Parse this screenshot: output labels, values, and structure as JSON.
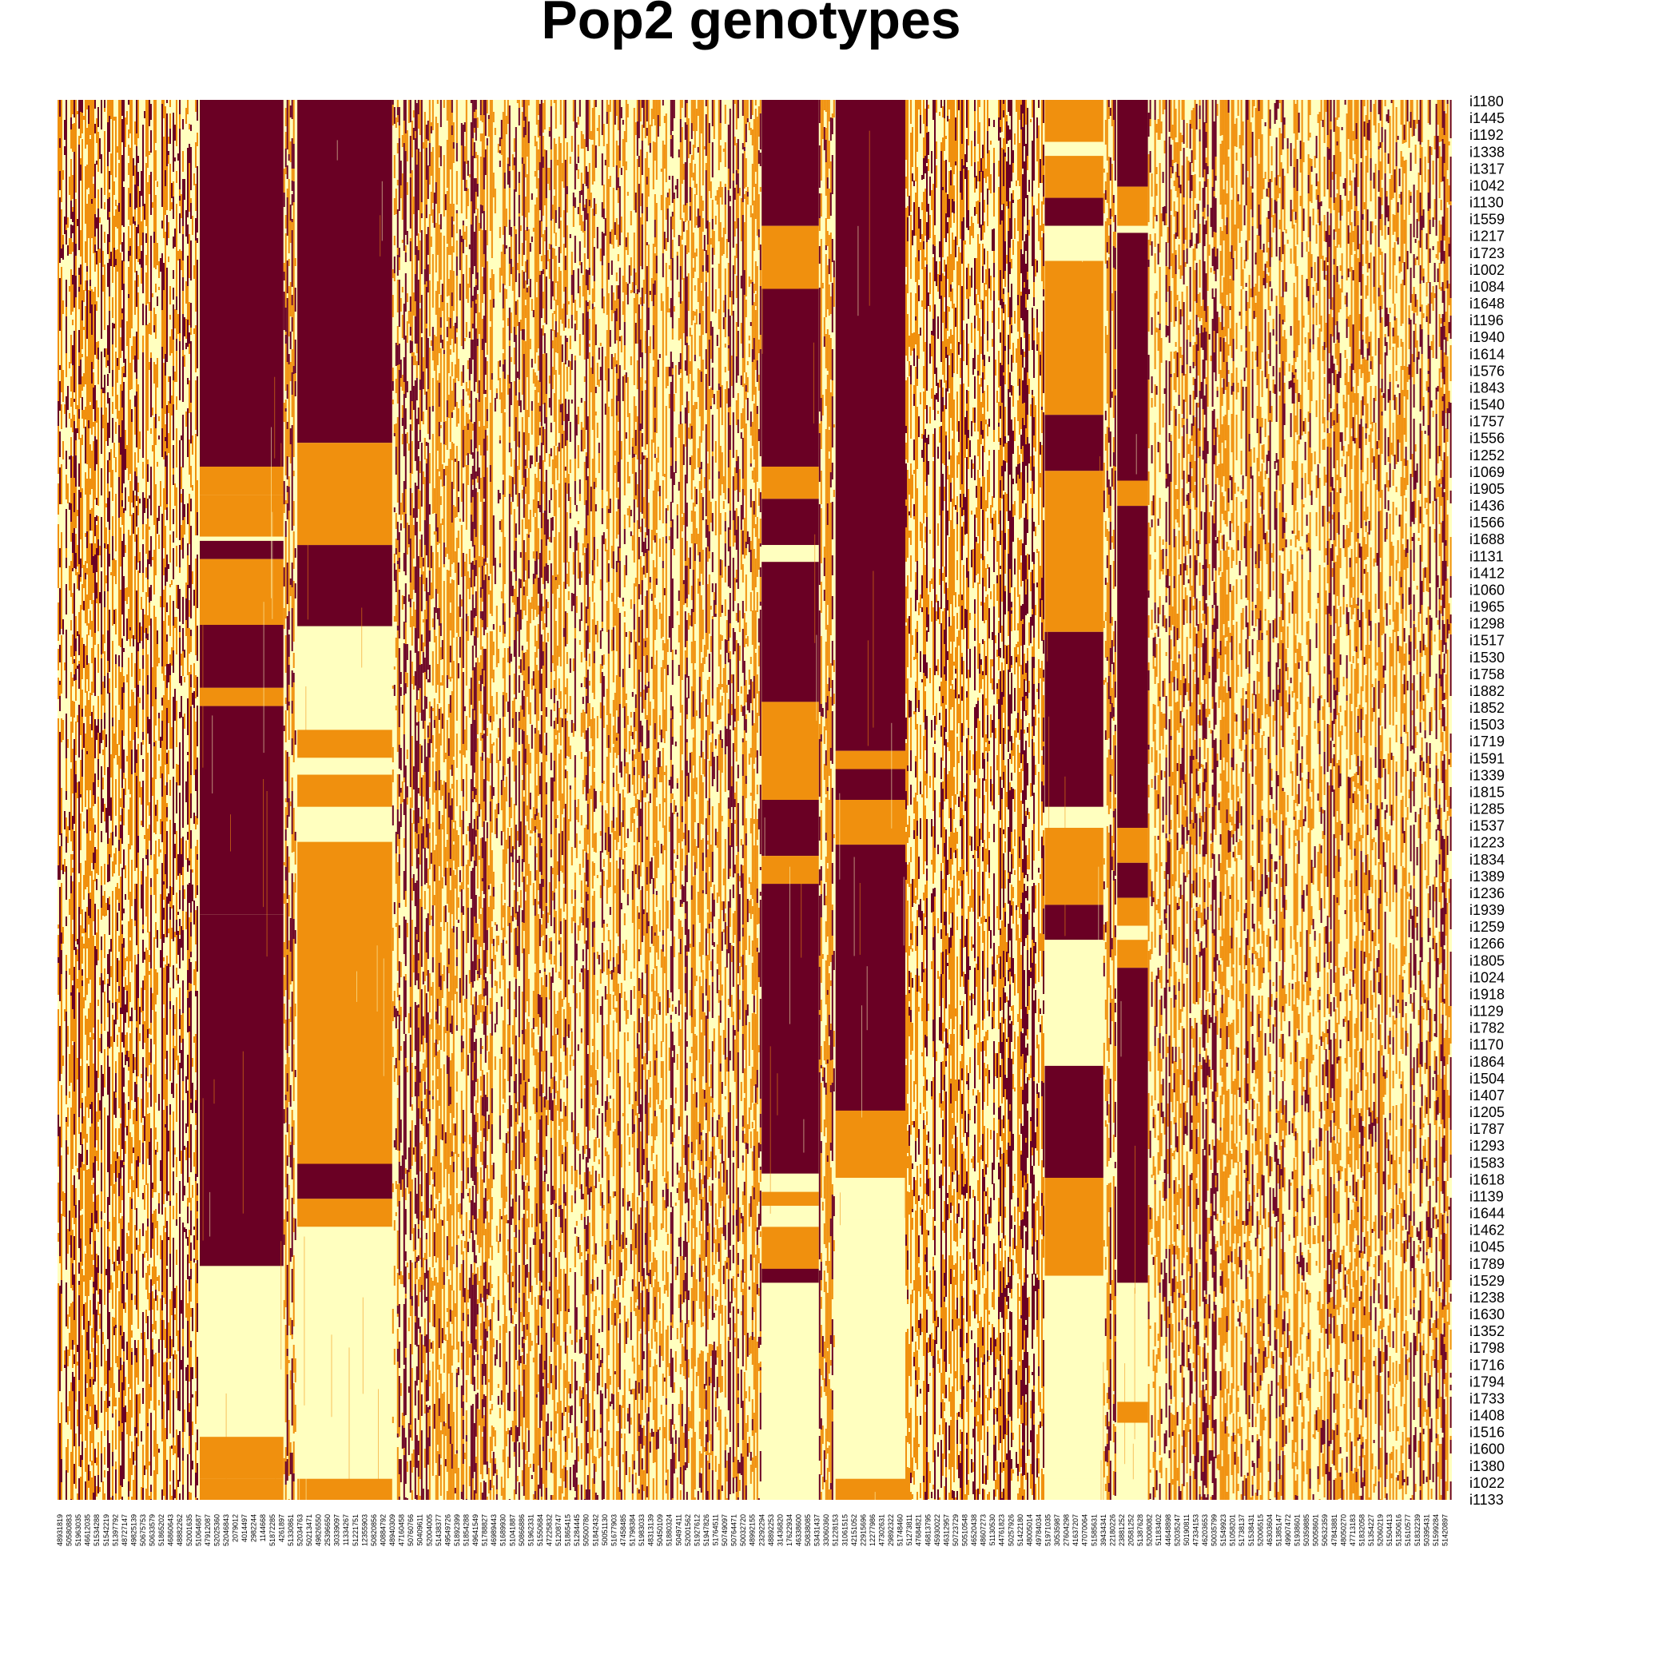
{
  "chart_data": {
    "type": "heatmap",
    "title": "Pop2 genotypes",
    "xlabel": "",
    "ylabel": "",
    "colors": {
      "0": "#FFFFBF",
      "1": "#F0900E",
      "2": "#6A0024",
      "background": "#FFFFFF"
    },
    "value_scale": [
      0,
      1,
      2
    ],
    "row_labels": [
      "i1180",
      "i1445",
      "i1192",
      "i1338",
      "i1317",
      "i1042",
      "i1130",
      "i1559",
      "i1217",
      "i1723",
      "i1002",
      "i1084",
      "i1648",
      "i1196",
      "i1940",
      "i1614",
      "i1576",
      "i1843",
      "i1540",
      "i1757",
      "i1556",
      "i1252",
      "i1069",
      "i1905",
      "i1436",
      "i1566",
      "i1688",
      "i1131",
      "i1412",
      "i1060",
      "i1965",
      "i1298",
      "i1517",
      "i1530",
      "i1758",
      "i1882",
      "i1852",
      "i1503",
      "i1719",
      "i1591",
      "i1339",
      "i1815",
      "i1285",
      "i1537",
      "i1223",
      "i1834",
      "i1389",
      "i1236",
      "i1939",
      "i1259",
      "i1266",
      "i1805",
      "i1024",
      "i1918",
      "i1129",
      "i1782",
      "i1170",
      "i1864",
      "i1504",
      "i1407",
      "i1205",
      "i1787",
      "i1293",
      "i1583",
      "i1618",
      "i1139",
      "i1644",
      "i1462",
      "i1045",
      "i1789",
      "i1529",
      "i1238",
      "i1630",
      "i1352",
      "i1798",
      "i1716",
      "i1794",
      "i1733",
      "i1408",
      "i1516",
      "i1600",
      "i1380",
      "i1022",
      "i1133"
    ],
    "col_labels": [
      "48931819",
      "50580883",
      "51963035",
      "46612035",
      "51534288",
      "51542219",
      "51397792",
      "48727147",
      "49825139",
      "50675753",
      "50633579",
      "51865202",
      "46860643",
      "48882262",
      "52001635",
      "51064687",
      "47912087",
      "52025360",
      "52046843",
      "2079012",
      "4014497",
      "2982244",
      "1144668",
      "51872285",
      "4261897",
      "51330861",
      "52034763",
      "50213471",
      "49826550",
      "25396650",
      "30339097",
      "11334267",
      "51221751",
      "12355903",
      "50820856",
      "40884792",
      "48940309",
      "47160458",
      "50760766",
      "50409611",
      "52004005",
      "51438377",
      "49549726",
      "51892399",
      "51854288",
      "49641549",
      "51788827",
      "46989443",
      "51689930",
      "51041887",
      "50866886",
      "51962331",
      "51550684",
      "47225832",
      "51208747",
      "51865415",
      "51284445",
      "50500780",
      "51842432",
      "50051130",
      "51677903",
      "47458485",
      "51798384",
      "51983033",
      "48313139",
      "50450109",
      "51880324",
      "50497411",
      "52001562",
      "51927612",
      "51947826",
      "51764511",
      "50749097",
      "50764471",
      "50032720",
      "48992155",
      "23292294",
      "48892253",
      "31436820",
      "17622934",
      "46338600",
      "50838085",
      "53431437",
      "33060360",
      "51228153",
      "31061515",
      "42151052",
      "22915696",
      "12277986",
      "47302631",
      "29892322",
      "51748460",
      "51273811",
      "47684821",
      "46813795",
      "45930022",
      "46312957",
      "50723729",
      "50510548",
      "46520438",
      "48607273",
      "51130530",
      "44761823",
      "50257926",
      "51422180",
      "48005014",
      "49784034",
      "51971035",
      "30535987",
      "27604298",
      "41637207",
      "47070064",
      "51585631",
      "39434341",
      "22180226",
      "23881252",
      "20581252",
      "51387628",
      "52008082",
      "51183402",
      "44648898",
      "52035247",
      "50190811",
      "47334153",
      "46203653",
      "50035799",
      "51549923",
      "51058201",
      "51738137",
      "51538431",
      "52006515",
      "46303604",
      "51385147",
      "49907472",
      "51938601",
      "50359885",
      "50058601",
      "50632359",
      "47843881",
      "48050270",
      "47713183",
      "51832058",
      "51354227",
      "52060219",
      "51504413",
      "51350616",
      "51610577",
      "51832239",
      "50395431",
      "51599284",
      "51420897"
    ],
    "column_blocks": [
      {
        "start_frac": 0.0,
        "end_frac": 0.102,
        "pattern": "sparse"
      },
      {
        "start_frac": 0.102,
        "end_frac": 0.162,
        "pattern": "block_A"
      },
      {
        "start_frac": 0.162,
        "end_frac": 0.172,
        "pattern": "sparse"
      },
      {
        "start_frac": 0.172,
        "end_frac": 0.24,
        "pattern": "block_B"
      },
      {
        "start_frac": 0.24,
        "end_frac": 0.505,
        "pattern": "sparse"
      },
      {
        "start_frac": 0.505,
        "end_frac": 0.546,
        "pattern": "block_C"
      },
      {
        "start_frac": 0.546,
        "end_frac": 0.558,
        "pattern": "sparse"
      },
      {
        "start_frac": 0.558,
        "end_frac": 0.608,
        "pattern": "block_D"
      },
      {
        "start_frac": 0.608,
        "end_frac": 0.708,
        "pattern": "sparse"
      },
      {
        "start_frac": 0.708,
        "end_frac": 0.75,
        "pattern": "block_E"
      },
      {
        "start_frac": 0.75,
        "end_frac": 0.76,
        "pattern": "sparse"
      },
      {
        "start_frac": 0.76,
        "end_frac": 0.782,
        "pattern": "block_F"
      },
      {
        "start_frac": 0.782,
        "end_frac": 1.0,
        "pattern": "sparse"
      }
    ],
    "block_segments": {
      "block_A": [
        [
          0.0,
          0.262,
          2
        ],
        [
          0.262,
          0.282,
          1
        ],
        [
          0.282,
          0.312,
          1
        ],
        [
          0.312,
          0.315,
          0
        ],
        [
          0.315,
          0.328,
          2
        ],
        [
          0.328,
          0.375,
          1
        ],
        [
          0.375,
          0.42,
          2
        ],
        [
          0.42,
          0.433,
          1
        ],
        [
          0.433,
          0.52,
          2
        ],
        [
          0.52,
          0.52,
          1
        ],
        [
          0.52,
          0.582,
          2
        ],
        [
          0.582,
          0.637,
          2
        ],
        [
          0.637,
          0.833,
          2
        ],
        [
          0.833,
          0.855,
          0
        ],
        [
          0.855,
          0.955,
          0
        ],
        [
          0.955,
          0.985,
          1
        ],
        [
          0.985,
          1.0,
          1
        ]
      ],
      "block_B": [
        [
          0.0,
          0.245,
          2
        ],
        [
          0.245,
          0.318,
          1
        ],
        [
          0.318,
          0.376,
          2
        ],
        [
          0.376,
          0.45,
          0
        ],
        [
          0.45,
          0.47,
          1
        ],
        [
          0.47,
          0.482,
          0
        ],
        [
          0.482,
          0.505,
          1
        ],
        [
          0.505,
          0.53,
          0
        ],
        [
          0.53,
          0.76,
          1
        ],
        [
          0.76,
          0.785,
          2
        ],
        [
          0.785,
          0.805,
          1
        ],
        [
          0.805,
          0.985,
          0
        ],
        [
          0.985,
          1.0,
          1
        ]
      ],
      "block_C": [
        [
          0.0,
          0.09,
          2
        ],
        [
          0.09,
          0.135,
          1
        ],
        [
          0.135,
          0.262,
          2
        ],
        [
          0.262,
          0.285,
          1
        ],
        [
          0.285,
          0.318,
          2
        ],
        [
          0.318,
          0.33,
          0
        ],
        [
          0.33,
          0.43,
          2
        ],
        [
          0.43,
          0.5,
          1
        ],
        [
          0.5,
          0.54,
          2
        ],
        [
          0.54,
          0.56,
          1
        ],
        [
          0.56,
          0.767,
          2
        ],
        [
          0.767,
          0.78,
          0
        ],
        [
          0.78,
          0.79,
          1
        ],
        [
          0.79,
          0.805,
          0
        ],
        [
          0.805,
          0.835,
          1
        ],
        [
          0.835,
          0.845,
          2
        ],
        [
          0.845,
          1.0,
          0
        ]
      ],
      "block_D": [
        [
          0.0,
          0.465,
          2
        ],
        [
          0.465,
          0.478,
          1
        ],
        [
          0.478,
          0.5,
          2
        ],
        [
          0.5,
          0.532,
          1
        ],
        [
          0.532,
          0.722,
          2
        ],
        [
          0.722,
          0.77,
          1
        ],
        [
          0.77,
          0.785,
          0
        ],
        [
          0.785,
          0.8,
          0
        ],
        [
          0.8,
          0.84,
          0
        ],
        [
          0.84,
          0.985,
          0
        ],
        [
          0.985,
          1.0,
          1
        ]
      ],
      "block_E": [
        [
          0.0,
          0.03,
          1
        ],
        [
          0.03,
          0.04,
          0
        ],
        [
          0.04,
          0.07,
          1
        ],
        [
          0.07,
          0.09,
          2
        ],
        [
          0.09,
          0.115,
          0
        ],
        [
          0.115,
          0.225,
          1
        ],
        [
          0.225,
          0.265,
          2
        ],
        [
          0.265,
          0.38,
          1
        ],
        [
          0.38,
          0.505,
          2
        ],
        [
          0.505,
          0.52,
          0
        ],
        [
          0.52,
          0.575,
          1
        ],
        [
          0.575,
          0.6,
          2
        ],
        [
          0.6,
          0.69,
          0
        ],
        [
          0.69,
          0.72,
          2
        ],
        [
          0.72,
          0.77,
          2
        ],
        [
          0.77,
          0.84,
          1
        ],
        [
          0.84,
          0.985,
          0
        ],
        [
          0.985,
          1.0,
          0
        ]
      ],
      "block_F": [
        [
          0.0,
          0.062,
          2
        ],
        [
          0.062,
          0.09,
          1
        ],
        [
          0.09,
          0.095,
          0
        ],
        [
          0.095,
          0.272,
          2
        ],
        [
          0.272,
          0.29,
          1
        ],
        [
          0.29,
          0.52,
          2
        ],
        [
          0.52,
          0.545,
          1
        ],
        [
          0.545,
          0.57,
          2
        ],
        [
          0.57,
          0.59,
          1
        ],
        [
          0.59,
          0.6,
          0
        ],
        [
          0.6,
          0.62,
          1
        ],
        [
          0.62,
          0.845,
          2
        ],
        [
          0.845,
          0.93,
          0
        ],
        [
          0.93,
          0.945,
          1
        ],
        [
          0.945,
          1.0,
          0
        ]
      ]
    },
    "sparse_distribution": {
      "0": 0.5,
      "1": 0.32,
      "2": 0.18
    },
    "legend": "none",
    "grid": false
  }
}
